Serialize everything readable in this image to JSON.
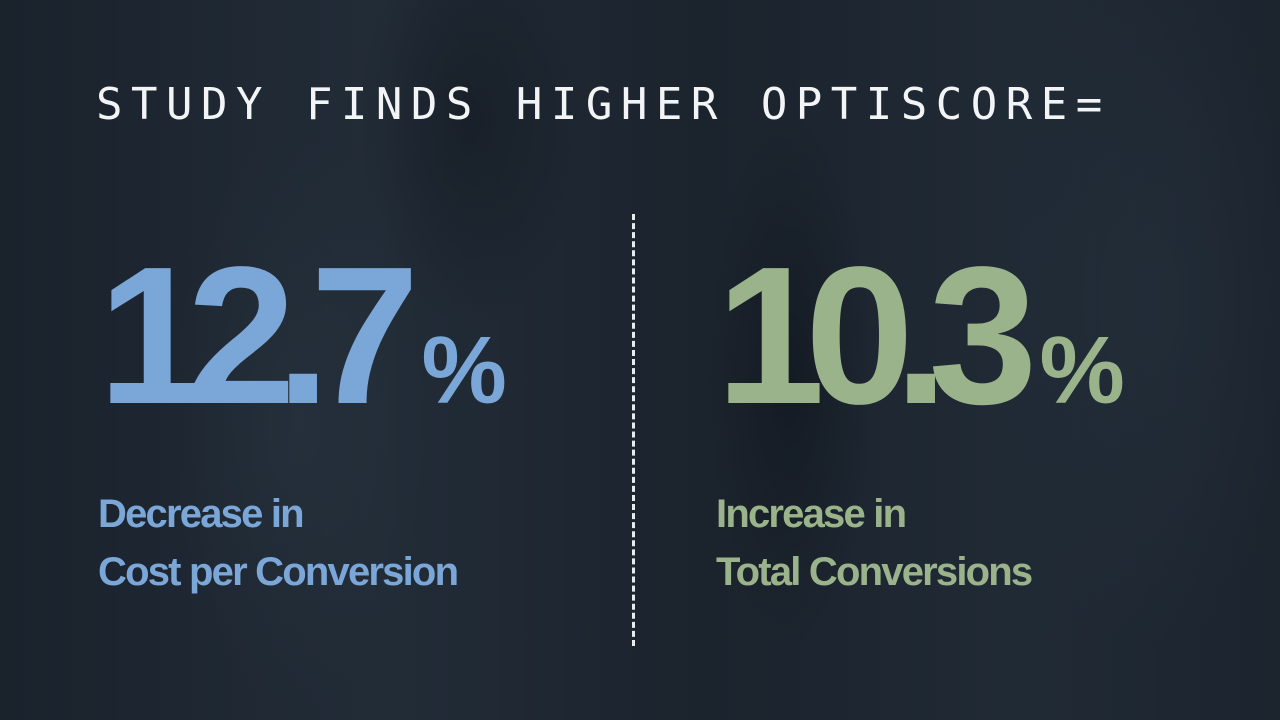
{
  "header": {
    "title": "STUDY FINDS HIGHER OPTISCORE="
  },
  "stats": [
    {
      "value": "12.7",
      "unit": "%",
      "label_lines": [
        "Decrease in",
        "Cost per Conversion"
      ]
    },
    {
      "value": "10.3",
      "unit": "%",
      "label_lines": [
        "Increase in",
        "Total Conversions"
      ]
    }
  ]
}
